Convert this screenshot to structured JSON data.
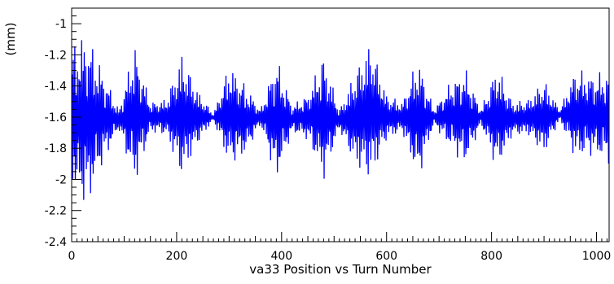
{
  "chart_data": {
    "type": "line",
    "title": "",
    "xlabel": "va33 Position vs Turn Number",
    "ylabel": "(mm)",
    "xlim": [
      0,
      1024
    ],
    "ylim": [
      -2.4,
      -0.9
    ],
    "grid": false,
    "legend": "none",
    "x_ticks": [
      0,
      200,
      400,
      600,
      800,
      1000
    ],
    "x_tick_labels": [
      "0",
      "200",
      "400",
      "600",
      "800",
      "1000"
    ],
    "y_ticks": [
      -2.4,
      -2.2,
      -2.0,
      -1.8,
      -1.6,
      -1.4,
      -1.2,
      -1.0
    ],
    "y_tick_labels": [
      "-2.4",
      "-2.2",
      "-2",
      "-1.8",
      "-1.6",
      "-1.4",
      "-1.2",
      "-1"
    ],
    "line_color": "#0000ff",
    "series": [
      {
        "name": "",
        "envelope_x": [
          0,
          10,
          30,
          60,
          90,
          120,
          150,
          180,
          210,
          240,
          270,
          300,
          330,
          360,
          390,
          420,
          450,
          480,
          510,
          540,
          570,
          600,
          630,
          660,
          690,
          720,
          750,
          780,
          810,
          840,
          870,
          900,
          930,
          960,
          990,
          1024
        ],
        "upper": [
          -1.15,
          -1.08,
          -1.05,
          -1.3,
          -1.55,
          -1.12,
          -1.5,
          -1.48,
          -1.18,
          -1.42,
          -1.58,
          -1.25,
          -1.38,
          -1.55,
          -1.2,
          -1.52,
          -1.45,
          -1.18,
          -1.55,
          -1.3,
          -1.1,
          -1.45,
          -1.5,
          -1.2,
          -1.55,
          -1.38,
          -1.28,
          -1.55,
          -1.25,
          -1.5,
          -1.48,
          -1.35,
          -1.55,
          -1.28,
          -1.32,
          -1.3
        ],
        "lower": [
          -2.0,
          -2.15,
          -2.18,
          -1.9,
          -1.68,
          -2.05,
          -1.7,
          -1.72,
          -2.0,
          -1.78,
          -1.62,
          -1.92,
          -1.85,
          -1.65,
          -2.02,
          -1.7,
          -1.75,
          -2.02,
          -1.68,
          -1.92,
          -2.02,
          -1.75,
          -1.7,
          -2.02,
          -1.65,
          -1.8,
          -1.92,
          -1.65,
          -1.95,
          -1.72,
          -1.72,
          -1.85,
          -1.62,
          -1.88,
          -1.85,
          -1.9
        ]
      }
    ]
  }
}
